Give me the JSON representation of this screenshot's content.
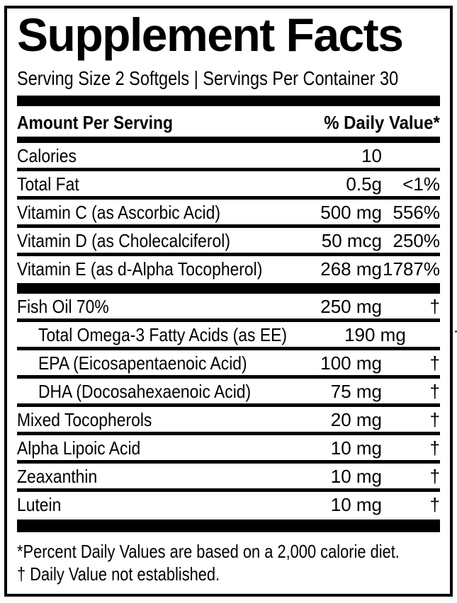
{
  "label": {
    "title": "Supplement Facts",
    "serving_info": "Serving Size 2 Softgels | Servings Per Container 30",
    "column_headers": {
      "amount": "Amount Per Serving",
      "daily_value": "% Daily Value*"
    },
    "nutrients": [
      {
        "name": "Calories",
        "amount": "10",
        "dv": "",
        "indent": false
      },
      {
        "name": "Total Fat",
        "amount": "0.5g",
        "dv": "<1%",
        "indent": false
      },
      {
        "name": "Vitamin C (as Ascorbic Acid)",
        "amount": "500 mg",
        "dv": "556%",
        "indent": false
      },
      {
        "name": "Vitamin D (as Cholecalciferol)",
        "amount": "50 mcg",
        "dv": "250%",
        "indent": false
      },
      {
        "name": "Vitamin E (as d-Alpha Tocopherol)",
        "amount": "268 mg",
        "dv": "1787%",
        "indent": false
      }
    ],
    "ingredients": [
      {
        "name": "Fish Oil 70%",
        "amount": "250 mg",
        "dv": "†",
        "indent": false
      },
      {
        "name": "Total Omega-3 Fatty Acids (as EE)",
        "amount": "190 mg",
        "dv": "†",
        "indent": true
      },
      {
        "name": "EPA (Eicosapentaenoic Acid)",
        "amount": "100 mg",
        "dv": "†",
        "indent": true
      },
      {
        "name": "DHA (Docosahexaenoic Acid)",
        "amount": "75 mg",
        "dv": "†",
        "indent": true
      },
      {
        "name": "Mixed Tocopherols",
        "amount": "20 mg",
        "dv": "†",
        "indent": false
      },
      {
        "name": "Alpha Lipoic Acid",
        "amount": "10 mg",
        "dv": "†",
        "indent": false
      },
      {
        "name": "Zeaxanthin",
        "amount": "10 mg",
        "dv": "†",
        "indent": false
      },
      {
        "name": "Lutein",
        "amount": "10 mg",
        "dv": "†",
        "indent": false
      }
    ],
    "footnotes": [
      "*Percent Daily Values are based on a 2,000 calorie diet.",
      "† Daily Value not established."
    ],
    "colors": {
      "ink": "#000000",
      "background": "#ffffff"
    }
  }
}
